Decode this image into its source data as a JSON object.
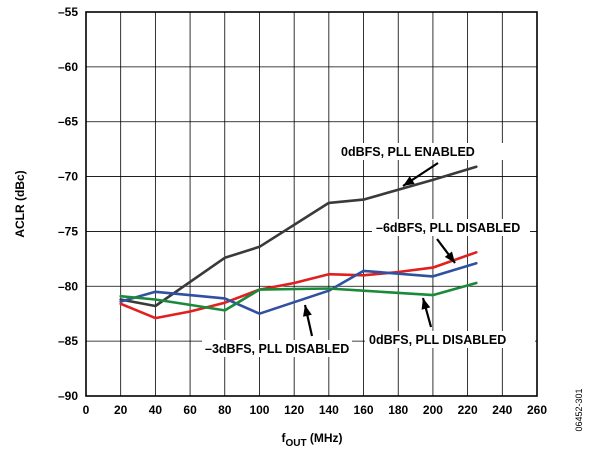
{
  "chart_data": {
    "type": "line",
    "xlabel": "f",
    "xlabel_sub": "OUT",
    "xlabel_unit": " (MHz)",
    "ylabel": "ACLR (dBc)",
    "xlim": [
      0,
      260
    ],
    "ylim": [
      -90,
      -55
    ],
    "x_ticks": [
      0,
      20,
      40,
      60,
      80,
      100,
      120,
      140,
      160,
      180,
      200,
      220,
      240,
      260
    ],
    "y_ticks": [
      -90,
      -85,
      -80,
      -75,
      -70,
      -65,
      -60,
      -55
    ],
    "x_tick_labels": [
      "0",
      "20",
      "40",
      "60",
      "80",
      "100",
      "120",
      "140",
      "160",
      "180",
      "200",
      "220",
      "240",
      "260"
    ],
    "y_tick_labels": [
      "–90",
      "–85",
      "–80",
      "–75",
      "–70",
      "–65",
      "–60",
      "–55"
    ],
    "grid": true,
    "series": [
      {
        "color": "#3a3a3a",
        "x": [
          20,
          40,
          80,
          100,
          140,
          160,
          200,
          225
        ],
        "y": [
          -81.2,
          -81.8,
          -77.4,
          -76.4,
          -72.4,
          -72.1,
          -70.3,
          -69.1
        ]
      },
      {
        "color": "#e02020",
        "x": [
          20,
          40,
          60,
          80,
          100,
          120,
          140,
          160,
          180,
          200,
          225
        ],
        "y": [
          -81.6,
          -82.9,
          -82.3,
          -81.5,
          -80.3,
          -79.7,
          -78.9,
          -79.0,
          -78.7,
          -78.3,
          -76.9
        ]
      },
      {
        "color": "#3050a0",
        "x": [
          20,
          40,
          80,
          100,
          140,
          160,
          200,
          225
        ],
        "y": [
          -81.4,
          -80.5,
          -81.1,
          -82.5,
          -80.4,
          -78.6,
          -79.1,
          -77.9
        ]
      },
      {
        "color": "#1a8a3a",
        "x": [
          20,
          40,
          60,
          80,
          100,
          140,
          160,
          200,
          225
        ],
        "y": [
          -80.9,
          -81.2,
          -81.7,
          -82.2,
          -80.3,
          -80.2,
          -80.4,
          -80.8,
          -79.7
        ]
      }
    ],
    "annotations": [
      {
        "text": "0dBFS, PLL ENABLED"
      },
      {
        "text": "–6dBFS, PLL DISABLED"
      },
      {
        "text": "–3dBFS, PLL DISABLED"
      },
      {
        "text": "0dBFS, PLL DISABLED"
      }
    ]
  },
  "figure_id": "06452-301"
}
